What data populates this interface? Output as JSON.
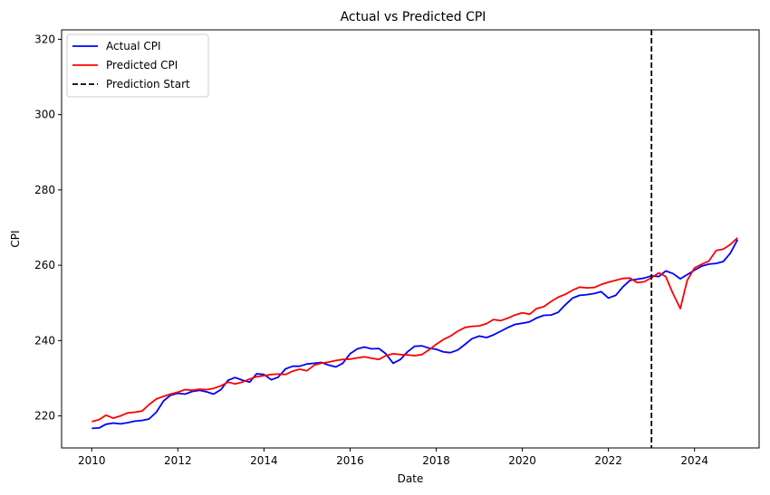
{
  "chart_data": {
    "type": "line",
    "title": "Actual vs Predicted CPI",
    "xlabel": "Date",
    "ylabel": "CPI",
    "xlim": [
      2009.3,
      2025.5
    ],
    "ylim": [
      211.5,
      322.5
    ],
    "xticks": [
      2010,
      2012,
      2014,
      2016,
      2018,
      2020,
      2022,
      2024
    ],
    "yticks": [
      220,
      240,
      260,
      280,
      300,
      320
    ],
    "grid": false,
    "legend": "top-left",
    "series": [
      {
        "name": "Actual CPI",
        "color": "#0000ff",
        "points": [
          [
            2010.0,
            216.7
          ],
          [
            2010.17,
            216.8
          ],
          [
            2010.33,
            217.8
          ],
          [
            2010.5,
            218.1
          ],
          [
            2010.67,
            217.9
          ],
          [
            2010.83,
            218.2
          ],
          [
            2011.0,
            218.6
          ],
          [
            2011.17,
            218.8
          ],
          [
            2011.33,
            219.2
          ],
          [
            2011.5,
            221.0
          ],
          [
            2011.67,
            224.0
          ],
          [
            2011.83,
            225.5
          ],
          [
            2012.0,
            226.0
          ],
          [
            2012.17,
            225.8
          ],
          [
            2012.33,
            226.5
          ],
          [
            2012.5,
            226.8
          ],
          [
            2012.67,
            226.4
          ],
          [
            2012.83,
            225.8
          ],
          [
            2013.0,
            227.0
          ],
          [
            2013.17,
            229.5
          ],
          [
            2013.33,
            230.2
          ],
          [
            2013.5,
            229.5
          ],
          [
            2013.67,
            229.0
          ],
          [
            2013.83,
            231.2
          ],
          [
            2014.0,
            231.0
          ],
          [
            2014.17,
            229.6
          ],
          [
            2014.33,
            230.3
          ],
          [
            2014.5,
            232.5
          ],
          [
            2014.67,
            233.2
          ],
          [
            2014.83,
            233.2
          ],
          [
            2015.0,
            233.8
          ],
          [
            2015.17,
            234.0
          ],
          [
            2015.33,
            234.2
          ],
          [
            2015.5,
            233.5
          ],
          [
            2015.67,
            233.0
          ],
          [
            2015.83,
            234.0
          ],
          [
            2016.0,
            236.5
          ],
          [
            2016.17,
            237.8
          ],
          [
            2016.33,
            238.3
          ],
          [
            2016.5,
            237.8
          ],
          [
            2016.67,
            237.9
          ],
          [
            2016.83,
            236.5
          ],
          [
            2017.0,
            234.0
          ],
          [
            2017.17,
            235.0
          ],
          [
            2017.33,
            237.0
          ],
          [
            2017.5,
            238.5
          ],
          [
            2017.67,
            238.6
          ],
          [
            2017.83,
            238.0
          ],
          [
            2018.0,
            237.7
          ],
          [
            2018.17,
            237.0
          ],
          [
            2018.33,
            236.8
          ],
          [
            2018.5,
            237.5
          ],
          [
            2018.67,
            239.0
          ],
          [
            2018.83,
            240.5
          ],
          [
            2019.0,
            241.2
          ],
          [
            2019.17,
            240.8
          ],
          [
            2019.33,
            241.5
          ],
          [
            2019.5,
            242.5
          ],
          [
            2019.67,
            243.5
          ],
          [
            2019.83,
            244.3
          ],
          [
            2020.0,
            244.6
          ],
          [
            2020.17,
            245.0
          ],
          [
            2020.33,
            246.0
          ],
          [
            2020.5,
            246.7
          ],
          [
            2020.67,
            246.8
          ],
          [
            2020.83,
            247.5
          ],
          [
            2021.0,
            249.5
          ],
          [
            2021.17,
            251.3
          ],
          [
            2021.33,
            252.0
          ],
          [
            2021.5,
            252.2
          ],
          [
            2021.67,
            252.5
          ],
          [
            2021.83,
            253.0
          ],
          [
            2022.0,
            251.3
          ],
          [
            2022.17,
            252.0
          ],
          [
            2022.33,
            254.2
          ],
          [
            2022.5,
            256.0
          ],
          [
            2022.67,
            256.3
          ],
          [
            2022.83,
            256.6
          ],
          [
            2023.0,
            257.2
          ],
          [
            2023.17,
            257.0
          ],
          [
            2023.33,
            258.5
          ],
          [
            2023.5,
            257.8
          ],
          [
            2023.67,
            256.4
          ],
          [
            2023.83,
            257.5
          ],
          [
            2024.0,
            258.7
          ],
          [
            2024.17,
            259.8
          ],
          [
            2024.33,
            260.3
          ],
          [
            2024.5,
            260.5
          ],
          [
            2024.67,
            261.0
          ],
          [
            2024.83,
            263.2
          ],
          [
            2025.0,
            266.8
          ]
        ]
      },
      {
        "name": "Predicted CPI",
        "color": "#ff0000",
        "points": [
          [
            2010.0,
            218.5
          ],
          [
            2010.17,
            219.0
          ],
          [
            2010.33,
            220.2
          ],
          [
            2010.5,
            219.4
          ],
          [
            2010.67,
            220.0
          ],
          [
            2010.83,
            220.8
          ],
          [
            2011.0,
            221.0
          ],
          [
            2011.17,
            221.3
          ],
          [
            2011.33,
            223.0
          ],
          [
            2011.5,
            224.5
          ],
          [
            2011.67,
            225.2
          ],
          [
            2011.83,
            225.8
          ],
          [
            2012.0,
            226.3
          ],
          [
            2012.17,
            227.0
          ],
          [
            2012.33,
            226.8
          ],
          [
            2012.5,
            227.1
          ],
          [
            2012.67,
            227.0
          ],
          [
            2012.83,
            227.3
          ],
          [
            2013.0,
            228.0
          ],
          [
            2013.17,
            229.0
          ],
          [
            2013.33,
            228.5
          ],
          [
            2013.5,
            229.0
          ],
          [
            2013.67,
            229.8
          ],
          [
            2013.83,
            230.4
          ],
          [
            2014.0,
            230.7
          ],
          [
            2014.17,
            231.0
          ],
          [
            2014.33,
            231.1
          ],
          [
            2014.5,
            231.0
          ],
          [
            2014.67,
            231.9
          ],
          [
            2014.83,
            232.4
          ],
          [
            2015.0,
            232.0
          ],
          [
            2015.17,
            233.5
          ],
          [
            2015.33,
            234.0
          ],
          [
            2015.5,
            234.3
          ],
          [
            2015.67,
            234.7
          ],
          [
            2015.83,
            235.0
          ],
          [
            2016.0,
            235.1
          ],
          [
            2016.17,
            235.4
          ],
          [
            2016.33,
            235.7
          ],
          [
            2016.5,
            235.3
          ],
          [
            2016.67,
            235.0
          ],
          [
            2016.83,
            236.0
          ],
          [
            2017.0,
            236.5
          ],
          [
            2017.17,
            236.3
          ],
          [
            2017.33,
            236.2
          ],
          [
            2017.5,
            236.0
          ],
          [
            2017.67,
            236.3
          ],
          [
            2017.83,
            237.5
          ],
          [
            2018.0,
            239.0
          ],
          [
            2018.17,
            240.3
          ],
          [
            2018.33,
            241.2
          ],
          [
            2018.5,
            242.5
          ],
          [
            2018.67,
            243.5
          ],
          [
            2018.83,
            243.8
          ],
          [
            2019.0,
            243.9
          ],
          [
            2019.17,
            244.5
          ],
          [
            2019.33,
            245.6
          ],
          [
            2019.5,
            245.3
          ],
          [
            2019.67,
            246.0
          ],
          [
            2019.83,
            246.8
          ],
          [
            2020.0,
            247.4
          ],
          [
            2020.17,
            247.0
          ],
          [
            2020.33,
            248.5
          ],
          [
            2020.5,
            249.0
          ],
          [
            2020.67,
            250.4
          ],
          [
            2020.83,
            251.5
          ],
          [
            2021.0,
            252.3
          ],
          [
            2021.17,
            253.4
          ],
          [
            2021.33,
            254.2
          ],
          [
            2021.5,
            254.0
          ],
          [
            2021.67,
            254.1
          ],
          [
            2021.83,
            254.9
          ],
          [
            2022.0,
            255.5
          ],
          [
            2022.17,
            256.0
          ],
          [
            2022.33,
            256.5
          ],
          [
            2022.5,
            256.6
          ],
          [
            2022.67,
            255.4
          ],
          [
            2022.83,
            255.6
          ],
          [
            2023.0,
            256.7
          ],
          [
            2023.17,
            258.0
          ],
          [
            2023.33,
            257.0
          ],
          [
            2023.5,
            252.5
          ],
          [
            2023.67,
            248.5
          ],
          [
            2023.83,
            256.0
          ],
          [
            2024.0,
            259.3
          ],
          [
            2024.17,
            260.3
          ],
          [
            2024.33,
            261.1
          ],
          [
            2024.5,
            263.9
          ],
          [
            2024.67,
            264.3
          ],
          [
            2024.83,
            265.5
          ],
          [
            2025.0,
            267.3
          ]
        ]
      }
    ],
    "vline": {
      "name": "Prediction Start",
      "x": 2023.0,
      "color": "#000000",
      "style": "dashed"
    }
  }
}
